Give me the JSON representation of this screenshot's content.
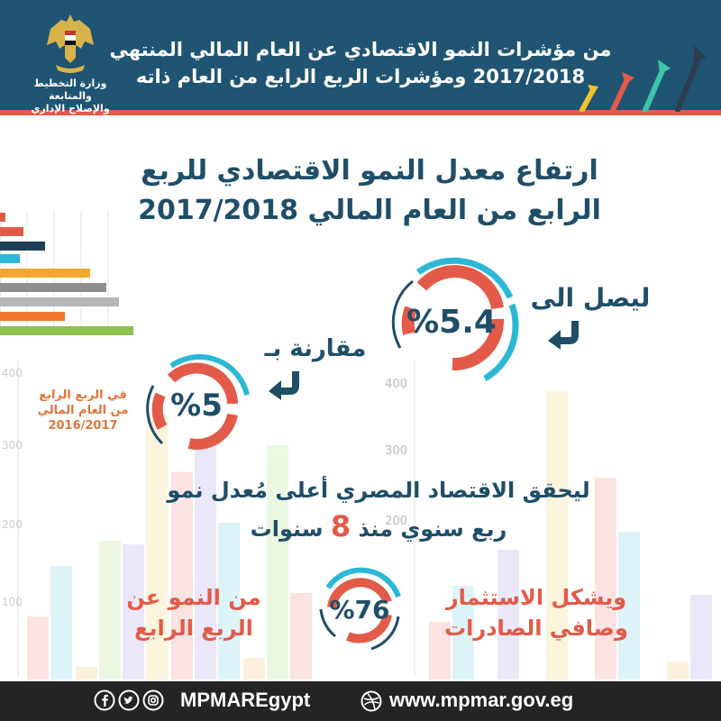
{
  "header": {
    "title_line1": "من مؤشرات النمو الاقتصادي عن العام المالي المنتهي",
    "title_line2": "2017/2018 ومؤشرات الربع الرابع من العام ذاته",
    "ministry_line1": "وزارة التخطيط والمتابعة",
    "ministry_line2": "والإصلاح الإداري"
  },
  "headline": {
    "line1": "ارتفاع معدل النمو الاقتصادي للربع",
    "line2": "الرابع من العام المالي 2017/2018"
  },
  "main": {
    "reach_label": "ليصل الى",
    "growth_value": "%5.4",
    "compare_label": "مقارنة بـ",
    "previous_value": "%5",
    "previous_period_line1": "في الربع الرابع",
    "previous_period_line2": "من العام المالي",
    "previous_period_line3": "2016/2017",
    "statement_line1": "ليحقق الاقتصاد المصري أعلى مُعدل نمو",
    "statement_line2_prefix": "ربع سنوي منذ",
    "statement_years": "8",
    "statement_line2_suffix": "سنوات",
    "investment_line1": "ويشكل الاستثمار",
    "investment_line2": "وصافي الصادرات",
    "share_value": "%76",
    "growth_source_line1": "من النمو عن",
    "growth_source_line2": "الربع الرابع"
  },
  "background_axis": {
    "right_ticks": [
      "400",
      "300",
      "200"
    ],
    "left_ticks": [
      "400",
      "300",
      "200",
      "100"
    ]
  },
  "footer": {
    "handle": "MPMAREgypt",
    "website": "www.mpmar.gov.eg"
  },
  "icons": [
    "egypt-eagle-emblem-icon",
    "facebook-icon",
    "twitter-icon",
    "instagram-icon",
    "dribbble-globe-icon",
    "curved-arrow-icon",
    "growth-arrows-icon"
  ],
  "colors": {
    "header_bg": "#1f5473",
    "accent_red": "#e35a48",
    "accent_cyan": "#2bb8d6",
    "text_navy": "#1f4e68",
    "accent_orange": "#e3743a",
    "footer_bg": "#242424"
  }
}
